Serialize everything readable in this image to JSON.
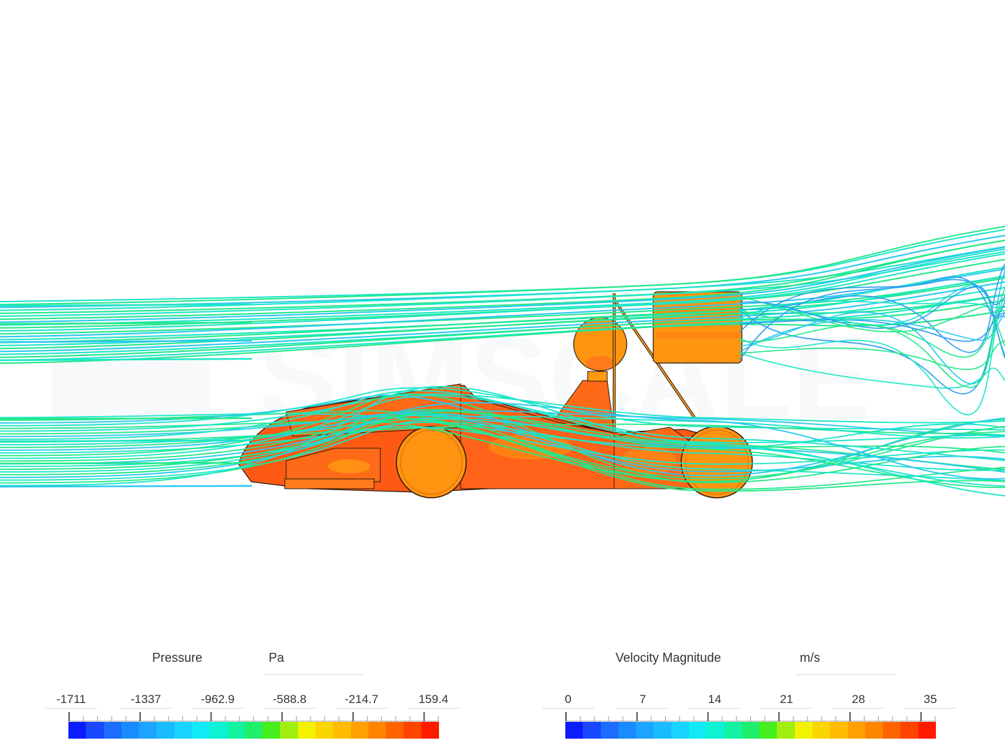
{
  "watermark": "SIMSCALE",
  "pressure_legend": {
    "title": "Pressure",
    "unit": "Pa",
    "ticks": [
      "-1711",
      "-1337",
      "-962.9",
      "-588.8",
      "-214.7",
      "159.4"
    ],
    "colors": [
      "#0b1cff",
      "#1948ff",
      "#1b6cff",
      "#1a8bff",
      "#1ca4ff",
      "#1bbcff",
      "#18d4ff",
      "#11e9f4",
      "#0cf2d2",
      "#12f2a2",
      "#1ff06b",
      "#45ee1c",
      "#a1ef10",
      "#f3f200",
      "#fbd500",
      "#ffbc00",
      "#ff9f00",
      "#ff8400",
      "#ff6400",
      "#ff4400",
      "#ff1a00"
    ]
  },
  "velocity_legend": {
    "title": "Velocity Magnitude",
    "unit": "m/s",
    "ticks": [
      "0",
      "7",
      "14",
      "21",
      "28",
      "35"
    ],
    "colors": [
      "#0b1cff",
      "#1948ff",
      "#1b6cff",
      "#1a8bff",
      "#1ca4ff",
      "#1bbcff",
      "#18d4ff",
      "#11e9f4",
      "#0cf2d2",
      "#12f2a2",
      "#1ff06b",
      "#45ee1c",
      "#a1ef10",
      "#f3f200",
      "#fbd500",
      "#ffbc00",
      "#ff9f00",
      "#ff8400",
      "#ff6400",
      "#ff4400",
      "#ff1a00"
    ]
  },
  "colors": {
    "body_fill": "#ff5a14",
    "body_accent": "#ff9a10",
    "wheel_fill": "#ff9410",
    "streamline_a": "#1de6c8",
    "streamline_b": "#22e88a",
    "streamline_c": "#28c8f0",
    "streamline_d": "#2c9ef0"
  }
}
